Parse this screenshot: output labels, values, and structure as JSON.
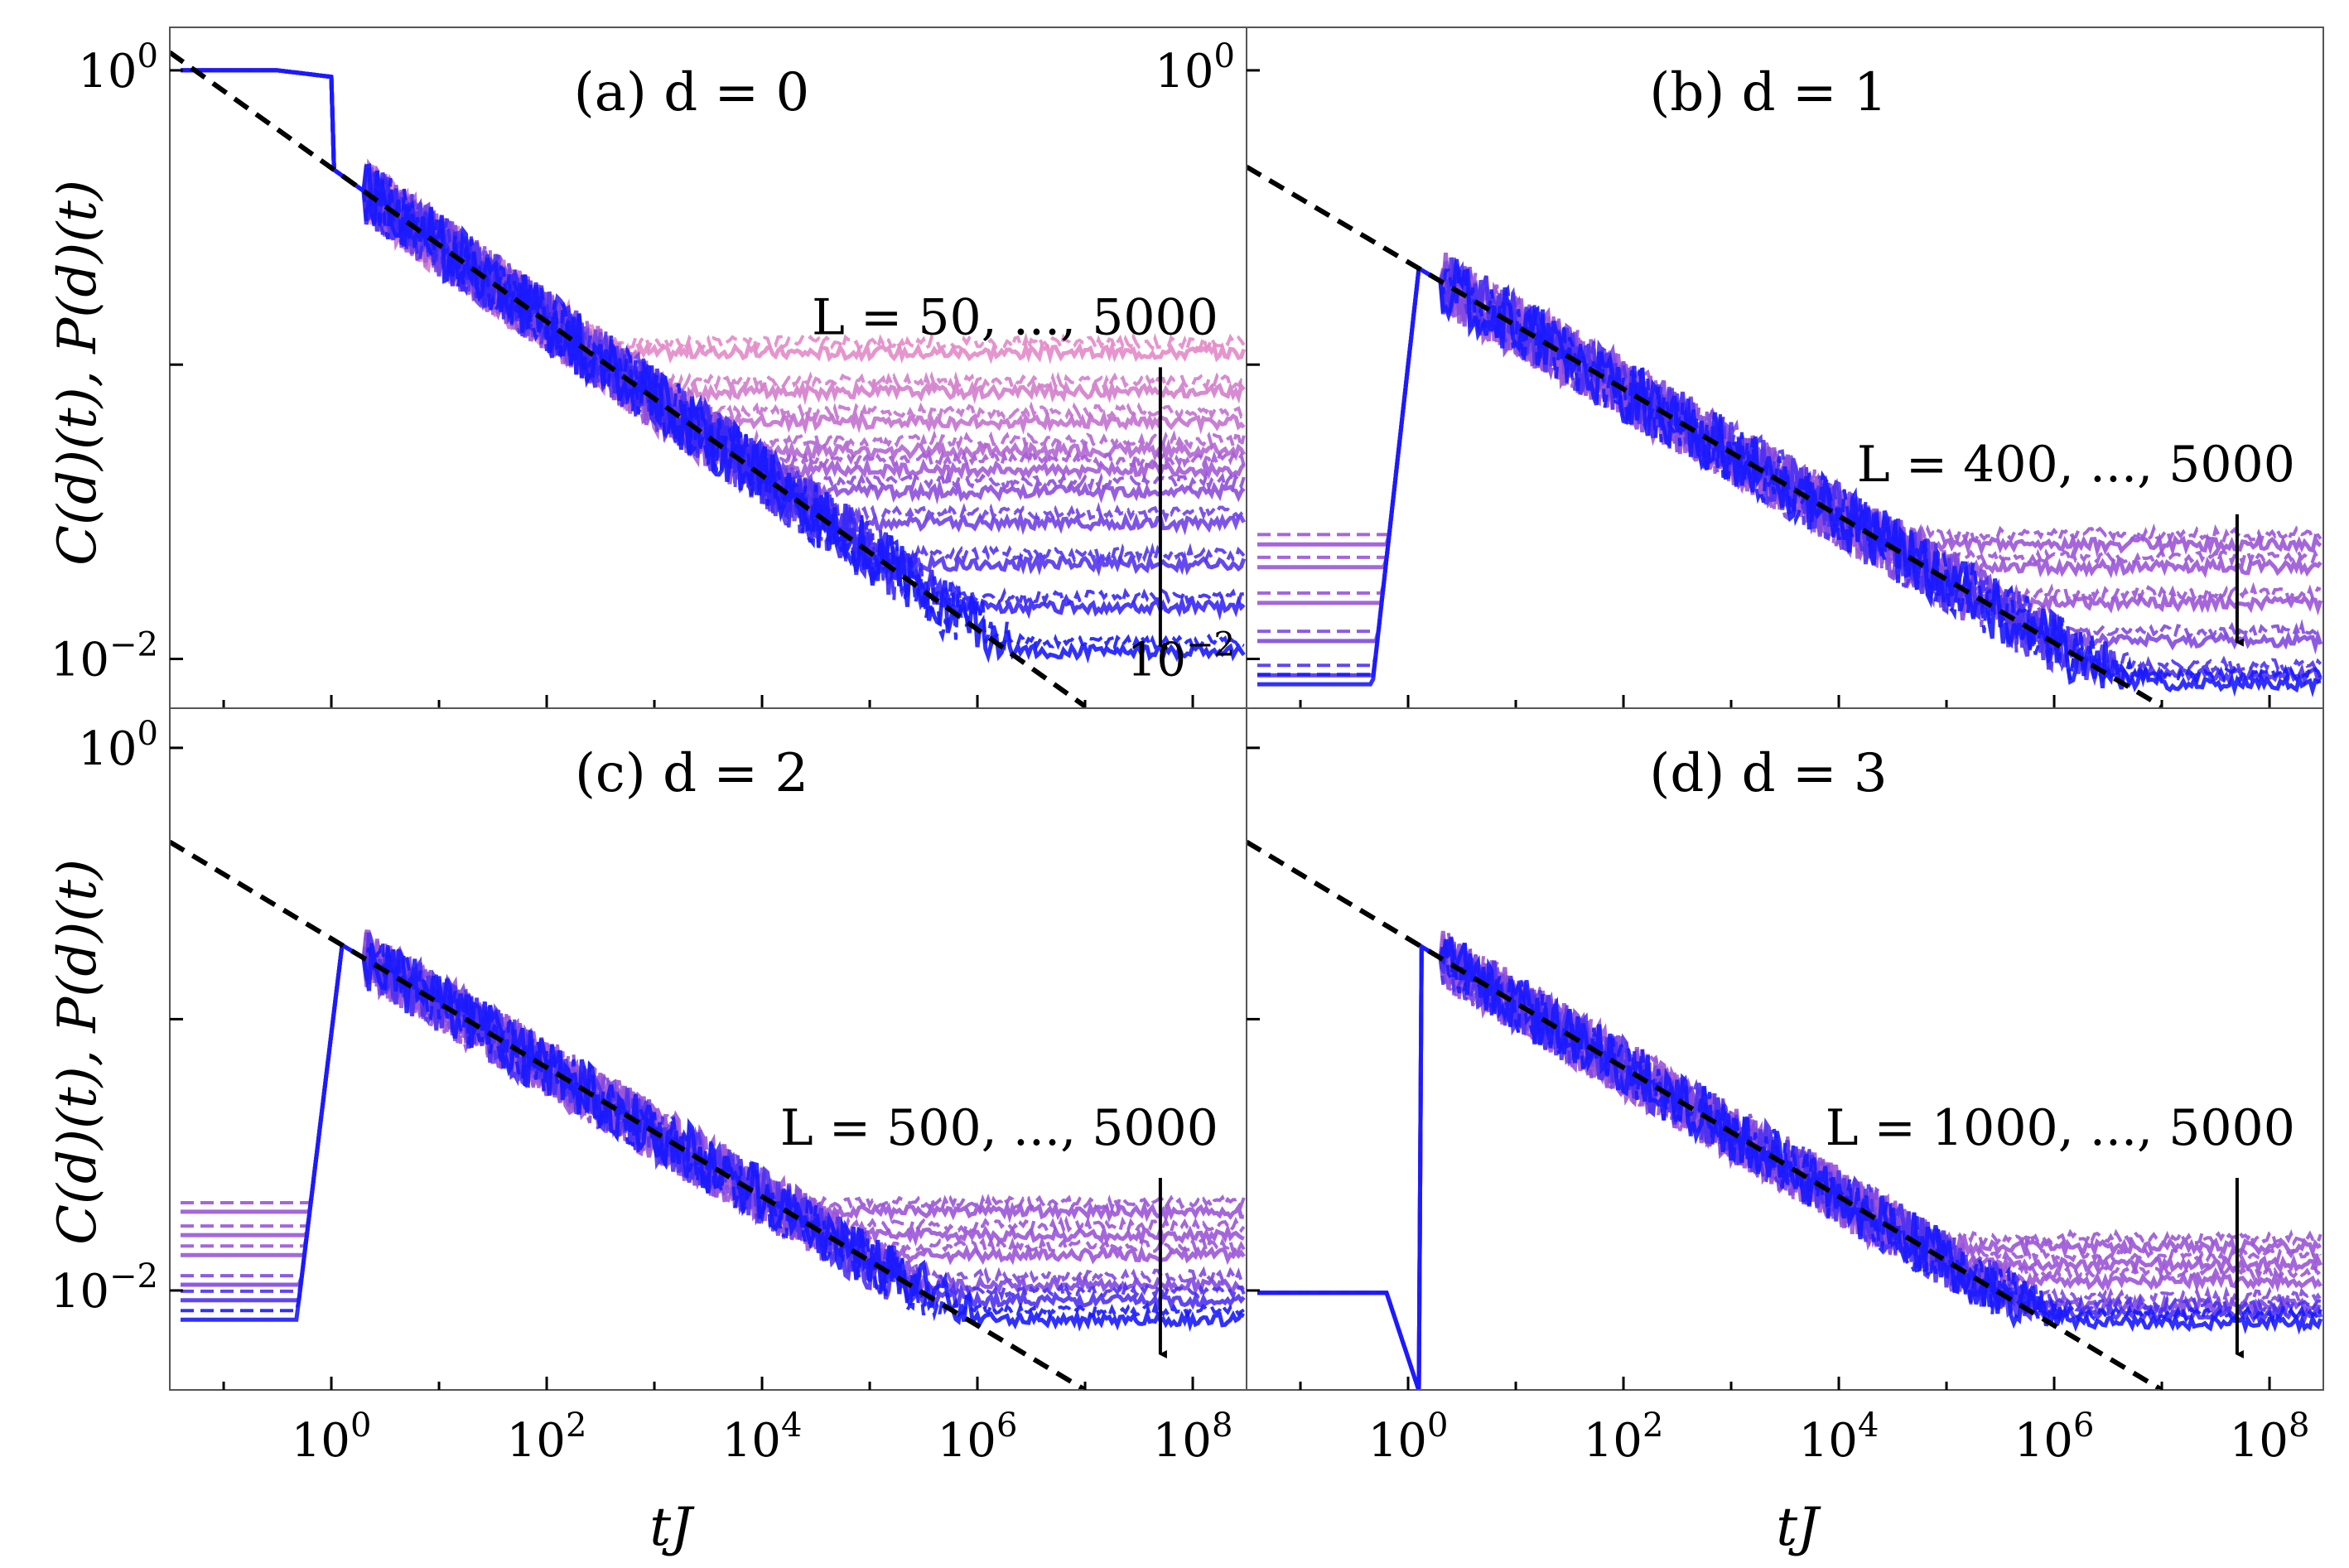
{
  "figure": {
    "xlabel": "tJ",
    "ylabel": "C(d)(t),   P(d)(t)"
  },
  "colors": {
    "light_pink": "#e38ac8",
    "mid_purple": "#9b55d8",
    "blue": "#1a1aff",
    "fit_line": "#000000"
  },
  "chart_data": [
    {
      "type": "line",
      "title": "(a) d = 0",
      "annotation": "L = 50, ..., 5000",
      "xscale": "log",
      "yscale": "log",
      "xlim": [
        0.0316,
        316000000.0
      ],
      "ylim": [
        0.0068,
        1.4
      ],
      "x_ticks": [
        "10^0",
        "10^2",
        "10^4",
        "10^6",
        "10^8"
      ],
      "y_ticks": [
        "10^0",
        "10^-2"
      ],
      "fit_line": {
        "x": [
          0.0316,
          10000000.0
        ],
        "y": [
          1.15,
          0.0069
        ]
      },
      "plateaus": [
        0.11,
        0.081,
        0.064,
        0.051,
        0.044,
        0.037,
        0.029,
        0.021,
        0.015,
        0.0106
      ],
      "arrow": {
        "x": 50000000.0,
        "y_from": 0.098,
        "y_to": 0.0105
      }
    },
    {
      "type": "line",
      "title": "(b) d = 1",
      "annotation": "L = 400, ..., 5000",
      "xscale": "log",
      "yscale": "log",
      "xlim": [
        0.0316,
        316000000.0
      ],
      "ylim": [
        0.0068,
        1.4
      ],
      "x_ticks": [
        "10^0",
        "10^2",
        "10^4",
        "10^6",
        "10^8"
      ],
      "y_ticks": [
        "10^0",
        "10^-2"
      ],
      "fit_line": {
        "x": [
          0.0316,
          10000000.0
        ],
        "y": [
          0.47,
          0.0069
        ]
      },
      "plateaus": [
        0.0245,
        0.0205,
        0.0155,
        0.0115,
        0.0088,
        0.0082
      ],
      "arrow": {
        "x": 50000000.0,
        "y_from": 0.031,
        "y_to": 0.0108
      }
    },
    {
      "type": "line",
      "title": "(c) d = 2",
      "annotation": "L = 500, ..., 5000",
      "xscale": "log",
      "yscale": "log",
      "xlim": [
        0.0316,
        316000000.0
      ],
      "ylim": [
        0.0043,
        1.4
      ],
      "x_ticks": [
        "10^0",
        "10^2",
        "10^4",
        "10^6",
        "10^8"
      ],
      "y_ticks": [
        "10^0",
        "10^-2"
      ],
      "fit_line": {
        "x": [
          0.0316,
          10000000.0
        ],
        "y": [
          0.45,
          0.0043
        ]
      },
      "plateaus": [
        0.0195,
        0.016,
        0.0135,
        0.0105,
        0.0092,
        0.0078
      ],
      "arrow": {
        "x": 50000000.0,
        "y_from": 0.026,
        "y_to": 0.0055
      }
    },
    {
      "type": "line",
      "title": "(d) d = 3",
      "annotation": "L = 1000, ..., 5000",
      "xscale": "log",
      "yscale": "log",
      "xlim": [
        0.0316,
        316000000.0
      ],
      "ylim": [
        0.0043,
        1.4
      ],
      "x_ticks": [
        "10^0",
        "10^2",
        "10^4",
        "10^6",
        "10^8"
      ],
      "y_ticks": [],
      "fit_line": {
        "x": [
          0.0316,
          10000000.0
        ],
        "y": [
          0.45,
          0.0043
        ]
      },
      "plateaus": [
        0.0145,
        0.0125,
        0.0108,
        0.0088,
        0.0082,
        0.0076
      ],
      "arrow": {
        "x": 50000000.0,
        "y_from": 0.026,
        "y_to": 0.0055
      }
    }
  ]
}
